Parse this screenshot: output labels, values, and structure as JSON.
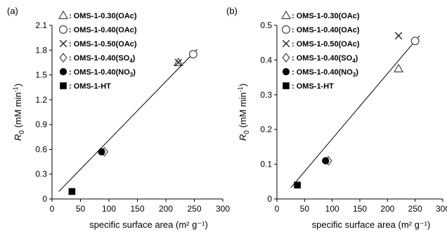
{
  "chart_data": [
    {
      "type": "scatter",
      "panel_label": "(a)",
      "xlabel": "specific surface area (m² g⁻¹)",
      "ylabel": "R0 (mM min-1)",
      "ylabel_parts": {
        "base": "R",
        "sub": "0",
        "unit_pre": " (mM min",
        "unit_sup": "-1",
        "unit_post": ")"
      },
      "xlim": [
        0,
        300
      ],
      "ylim": [
        0,
        2.1
      ],
      "xticks": [
        "0",
        "50",
        "100",
        "150",
        "200",
        "250",
        "300"
      ],
      "xtick_values": [
        0,
        50,
        100,
        150,
        200,
        250,
        300
      ],
      "yticks": [
        "0",
        "0.3",
        "0.6",
        "0.9",
        "1.2",
        "1.5",
        "1.8",
        "2.1"
      ],
      "ytick_values": [
        0,
        0.3,
        0.6,
        0.9,
        1.2,
        1.5,
        1.8,
        2.1
      ],
      "grid": false,
      "legend_position": "top-left",
      "series": [
        {
          "name": "OMS-1-0.30(OAc)",
          "marker": "triangle-open",
          "points": [
            [
              222,
              1.65
            ]
          ]
        },
        {
          "name": "OMS-1-0.40(OAc)",
          "marker": "circle-open",
          "points": [
            [
              248,
              1.75
            ]
          ]
        },
        {
          "name": "OMS-1-0.50(OAc)",
          "marker": "x",
          "points": [
            [
              222,
              1.65
            ]
          ]
        },
        {
          "name": "OMS-1-0.40(SO4)",
          "marker": "diamond-open",
          "points": [
            [
              92,
              0.57
            ]
          ]
        },
        {
          "name": "OMS-1-0.40(NO3)",
          "marker": "circle-filled",
          "points": [
            [
              87,
              0.57
            ]
          ]
        },
        {
          "name": "OMS-1-HT",
          "marker": "square-filled",
          "points": [
            [
              35,
              0.09
            ]
          ]
        }
      ],
      "trendline": {
        "x": [
          12,
          255
        ],
        "y": [
          0.09,
          1.81
        ]
      }
    },
    {
      "type": "scatter",
      "panel_label": "(b)",
      "xlabel": "specific surface area (m² g⁻¹)",
      "ylabel": "R0 (mM min-1)",
      "ylabel_parts": {
        "base": "R",
        "sub": "0",
        "unit_pre": " (mM min",
        "unit_sup": "-1",
        "unit_post": ")"
      },
      "xlim": [
        0,
        300
      ],
      "ylim": [
        0,
        0.5
      ],
      "xticks": [
        "0",
        "50",
        "100",
        "150",
        "200",
        "250",
        "300"
      ],
      "xtick_values": [
        0,
        50,
        100,
        150,
        200,
        250,
        300
      ],
      "yticks": [
        "0",
        "0.1",
        "0.2",
        "0.3",
        "0.4",
        "0.5"
      ],
      "ytick_values": [
        0,
        0.1,
        0.2,
        0.3,
        0.4,
        0.5
      ],
      "grid": false,
      "legend_position": "top-left",
      "series": [
        {
          "name": "OMS-1-0.30(OAc)",
          "marker": "triangle-open",
          "points": [
            [
              220,
              0.375
            ]
          ]
        },
        {
          "name": "OMS-1-0.40(OAc)",
          "marker": "circle-open",
          "points": [
            [
              250,
              0.455
            ]
          ]
        },
        {
          "name": "OMS-1-0.50(OAc)",
          "marker": "x",
          "points": [
            [
              220,
              0.47
            ]
          ]
        },
        {
          "name": "OMS-1-0.40(SO4)",
          "marker": "diamond-open",
          "points": [
            [
              93,
              0.11
            ]
          ]
        },
        {
          "name": "OMS-1-0.40(NO3)",
          "marker": "circle-filled",
          "points": [
            [
              88,
              0.11
            ]
          ]
        },
        {
          "name": "OMS-1-HT",
          "marker": "square-filled",
          "points": [
            [
              37,
              0.04
            ]
          ]
        }
      ],
      "trendline": {
        "x": [
          25,
          258
        ],
        "y": [
          0.032,
          0.47
        ]
      }
    }
  ],
  "legend": [
    {
      "marker": "triangle-open",
      "prefix": ": ",
      "base": "OMS-1-0.30(OAc)",
      "sub": "",
      "tail": ""
    },
    {
      "marker": "circle-open",
      "prefix": ": ",
      "base": "OMS-1-0.40(OAc)",
      "sub": "",
      "tail": ""
    },
    {
      "marker": "x",
      "prefix": ": ",
      "base": "OMS-1-0.50(OAc)",
      "sub": "",
      "tail": ""
    },
    {
      "marker": "diamond-open",
      "prefix": ": ",
      "base": "OMS-1-0.40(SO",
      "sub": "4",
      "tail": ")"
    },
    {
      "marker": "circle-filled",
      "prefix": ": ",
      "base": "OMS-1-0.40(NO",
      "sub": "3",
      "tail": ")"
    },
    {
      "marker": "square-filled",
      "prefix": ": ",
      "base": "OMS-1-HT",
      "sub": "",
      "tail": ""
    }
  ]
}
